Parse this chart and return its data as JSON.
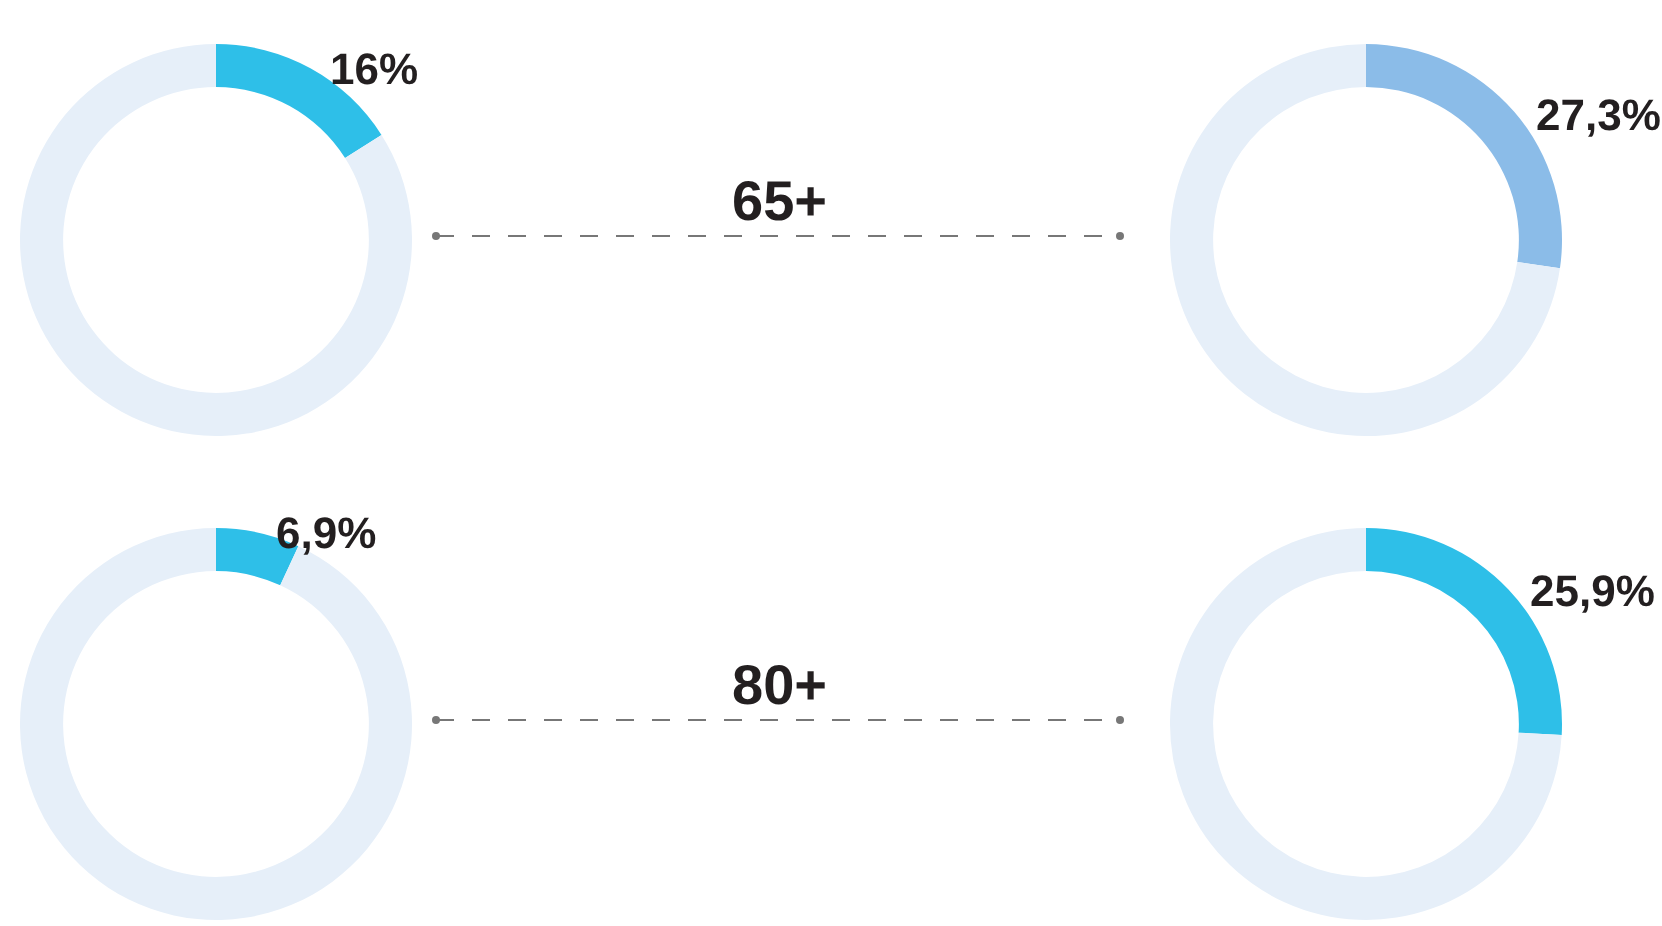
{
  "chart_data": [
    {
      "type": "donut",
      "categories": [
        null,
        null
      ],
      "values": [
        16,
        84
      ],
      "colors": [
        "#2ebfe8",
        "#e6eff9"
      ],
      "value_labels": [
        "16%",
        null
      ]
    },
    {
      "type": "other",
      "annotations": [
        "65+"
      ]
    },
    {
      "type": "donut",
      "categories": [
        null,
        null
      ],
      "values": [
        27.3,
        72.7
      ],
      "colors": [
        "#8bbce8",
        "#e6eff9"
      ],
      "value_labels": [
        "27,3%",
        null
      ]
    },
    {
      "type": "donut",
      "categories": [
        null,
        null
      ],
      "values": [
        6.9,
        93.1
      ],
      "colors": [
        "#2ebfe8",
        "#e6eff9"
      ],
      "value_labels": [
        "6,9%",
        null
      ]
    },
    {
      "type": "other",
      "annotations": [
        "80+"
      ]
    },
    {
      "type": "donut",
      "categories": [
        null,
        null
      ],
      "values": [
        25.9,
        74.1
      ],
      "colors": [
        "#2ebfe8",
        "#e6eff9"
      ],
      "value_labels": [
        "25,9%",
        null
      ]
    }
  ]
}
